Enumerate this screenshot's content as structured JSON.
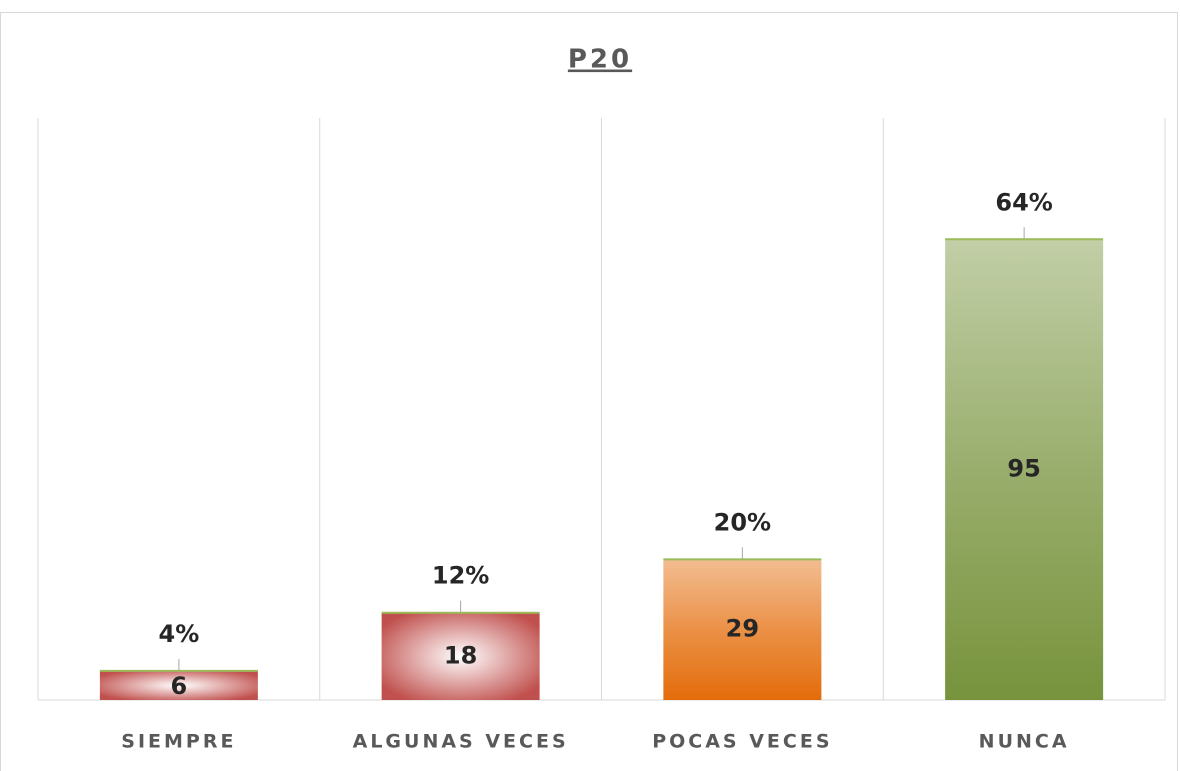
{
  "chart_data": {
    "type": "bar",
    "title": "P20",
    "categories": [
      "SIEMPRE",
      "ALGUNAS VECES",
      "POCAS VECES",
      "NUNCA"
    ],
    "values": [
      6,
      18,
      29,
      95
    ],
    "percentage_labels": [
      "4%",
      "12%",
      "20%",
      "64%"
    ],
    "colors": [
      "#c0504d",
      "#c0504d",
      "#e46c0a",
      "#77933c"
    ],
    "ylim": [
      0,
      120
    ],
    "category_grid": true
  }
}
